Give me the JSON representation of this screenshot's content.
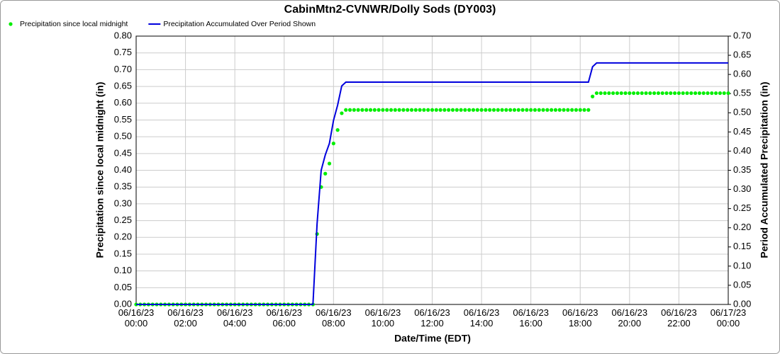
{
  "chart_data": {
    "type": "line",
    "title": "CabinMtn2-CVNWR/Dolly Sods (DY003)",
    "xlabel": "Date/Time (EDT)",
    "ylabel": "Precipitation since local midnight (in)",
    "y2label": "Period Accumulated Precipitation (in)",
    "legend": "top-left",
    "grid": true,
    "xlim": [
      "06/16/23 00:00",
      "06/17/23 00:00"
    ],
    "xticks": [
      {
        "value": "06/16/23 00:00",
        "label": "06/16/23\n00:00"
      },
      {
        "value": "06/16/23 02:00",
        "label": "06/16/23\n02:00"
      },
      {
        "value": "06/16/23 04:00",
        "label": "06/16/23\n04:00"
      },
      {
        "value": "06/16/23 06:00",
        "label": "06/16/23\n06:00"
      },
      {
        "value": "06/16/23 08:00",
        "label": "06/16/23\n08:00"
      },
      {
        "value": "06/16/23 10:00",
        "label": "06/16/23\n10:00"
      },
      {
        "value": "06/16/23 12:00",
        "label": "06/16/23\n12:00"
      },
      {
        "value": "06/16/23 14:00",
        "label": "06/16/23\n14:00"
      },
      {
        "value": "06/16/23 16:00",
        "label": "06/16/23\n16:00"
      },
      {
        "value": "06/16/23 18:00",
        "label": "06/16/23\n18:00"
      },
      {
        "value": "06/16/23 20:00",
        "label": "06/16/23\n20:00"
      },
      {
        "value": "06/16/23 22:00",
        "label": "06/16/23\n22:00"
      },
      {
        "value": "06/17/23 00:00",
        "label": "06/17/23\n00:00"
      }
    ],
    "ylim": [
      0,
      0.8
    ],
    "yticks": [
      {
        "value": 0,
        "label": "0.00"
      },
      {
        "value": 0.05,
        "label": "0.05"
      },
      {
        "value": 0.1,
        "label": "0.10"
      },
      {
        "value": 0.15,
        "label": "0.15"
      },
      {
        "value": 0.2,
        "label": "0.20"
      },
      {
        "value": 0.25,
        "label": "0.25"
      },
      {
        "value": 0.3,
        "label": "0.30"
      },
      {
        "value": 0.35,
        "label": "0.35"
      },
      {
        "value": 0.4,
        "label": "0.40"
      },
      {
        "value": 0.45,
        "label": "0.45"
      },
      {
        "value": 0.5,
        "label": "0.50"
      },
      {
        "value": 0.55,
        "label": "0.55"
      },
      {
        "value": 0.6,
        "label": "0.60"
      },
      {
        "value": 0.65,
        "label": "0.65"
      },
      {
        "value": 0.7,
        "label": "0.70"
      },
      {
        "value": 0.75,
        "label": "0.75"
      },
      {
        "value": 0.8,
        "label": "0.80"
      }
    ],
    "y2lim": [
      0,
      0.7
    ],
    "y2ticks": [
      {
        "value": 0,
        "label": "0.00"
      },
      {
        "value": 0.05,
        "label": "0.05"
      },
      {
        "value": 0.1,
        "label": "0.10"
      },
      {
        "value": 0.15,
        "label": "0.15"
      },
      {
        "value": 0.2,
        "label": "0.20"
      },
      {
        "value": 0.25,
        "label": "0.25"
      },
      {
        "value": 0.3,
        "label": "0.30"
      },
      {
        "value": 0.35,
        "label": "0.35"
      },
      {
        "value": 0.4,
        "label": "0.40"
      },
      {
        "value": 0.45,
        "label": "0.45"
      },
      {
        "value": 0.5,
        "label": "0.50"
      },
      {
        "value": 0.55,
        "label": "0.55"
      },
      {
        "value": 0.6,
        "label": "0.60"
      },
      {
        "value": 0.65,
        "label": "0.65"
      },
      {
        "value": 0.7,
        "label": "0.70"
      }
    ],
    "x": [
      "06/16/23 00:00",
      "06/16/23 00:10",
      "06/16/23 00:20",
      "06/16/23 00:30",
      "06/16/23 00:40",
      "06/16/23 00:50",
      "06/16/23 01:00",
      "06/16/23 01:10",
      "06/16/23 01:20",
      "06/16/23 01:30",
      "06/16/23 01:40",
      "06/16/23 01:50",
      "06/16/23 02:00",
      "06/16/23 02:10",
      "06/16/23 02:20",
      "06/16/23 02:30",
      "06/16/23 02:40",
      "06/16/23 02:50",
      "06/16/23 03:00",
      "06/16/23 03:10",
      "06/16/23 03:20",
      "06/16/23 03:30",
      "06/16/23 03:40",
      "06/16/23 03:50",
      "06/16/23 04:00",
      "06/16/23 04:10",
      "06/16/23 04:20",
      "06/16/23 04:30",
      "06/16/23 04:40",
      "06/16/23 04:50",
      "06/16/23 05:00",
      "06/16/23 05:10",
      "06/16/23 05:20",
      "06/16/23 05:30",
      "06/16/23 05:40",
      "06/16/23 05:50",
      "06/16/23 06:00",
      "06/16/23 06:10",
      "06/16/23 06:20",
      "06/16/23 06:30",
      "06/16/23 06:40",
      "06/16/23 06:50",
      "06/16/23 07:00",
      "06/16/23 07:10",
      "06/16/23 07:20",
      "06/16/23 07:30",
      "06/16/23 07:40",
      "06/16/23 07:50",
      "06/16/23 08:00",
      "06/16/23 08:10",
      "06/16/23 08:20",
      "06/16/23 08:30",
      "06/16/23 08:40",
      "06/16/23 08:50",
      "06/16/23 09:00",
      "06/16/23 09:10",
      "06/16/23 09:20",
      "06/16/23 09:30",
      "06/16/23 09:40",
      "06/16/23 09:50",
      "06/16/23 10:00",
      "06/16/23 10:10",
      "06/16/23 10:20",
      "06/16/23 10:30",
      "06/16/23 10:40",
      "06/16/23 10:50",
      "06/16/23 11:00",
      "06/16/23 11:10",
      "06/16/23 11:20",
      "06/16/23 11:30",
      "06/16/23 11:40",
      "06/16/23 11:50",
      "06/16/23 12:00",
      "06/16/23 12:10",
      "06/16/23 12:20",
      "06/16/23 12:30",
      "06/16/23 12:40",
      "06/16/23 12:50",
      "06/16/23 13:00",
      "06/16/23 13:10",
      "06/16/23 13:20",
      "06/16/23 13:30",
      "06/16/23 13:40",
      "06/16/23 13:50",
      "06/16/23 14:00",
      "06/16/23 14:10",
      "06/16/23 14:20",
      "06/16/23 14:30",
      "06/16/23 14:40",
      "06/16/23 14:50",
      "06/16/23 15:00",
      "06/16/23 15:10",
      "06/16/23 15:20",
      "06/16/23 15:30",
      "06/16/23 15:40",
      "06/16/23 15:50",
      "06/16/23 16:00",
      "06/16/23 16:10",
      "06/16/23 16:20",
      "06/16/23 16:30",
      "06/16/23 16:40",
      "06/16/23 16:50",
      "06/16/23 17:00",
      "06/16/23 17:10",
      "06/16/23 17:20",
      "06/16/23 17:30",
      "06/16/23 17:40",
      "06/16/23 17:50",
      "06/16/23 18:00",
      "06/16/23 18:10",
      "06/16/23 18:20",
      "06/16/23 18:30",
      "06/16/23 18:40",
      "06/16/23 18:50",
      "06/16/23 19:00",
      "06/16/23 19:10",
      "06/16/23 19:20",
      "06/16/23 19:30",
      "06/16/23 19:40",
      "06/16/23 19:50",
      "06/16/23 20:00",
      "06/16/23 20:10",
      "06/16/23 20:20",
      "06/16/23 20:30",
      "06/16/23 20:40",
      "06/16/23 20:50",
      "06/16/23 21:00",
      "06/16/23 21:10",
      "06/16/23 21:20",
      "06/16/23 21:30",
      "06/16/23 21:40",
      "06/16/23 21:50",
      "06/16/23 22:00",
      "06/16/23 22:10",
      "06/16/23 22:20",
      "06/16/23 22:30",
      "06/16/23 22:40",
      "06/16/23 22:50",
      "06/16/23 23:00",
      "06/16/23 23:10",
      "06/16/23 23:20",
      "06/16/23 23:30",
      "06/16/23 23:40",
      "06/16/23 23:50",
      "06/17/23 00:00"
    ],
    "series": [
      {
        "name": "Precipitation since local midnight",
        "color": "#00ee00",
        "mode": "markers",
        "axis": "y",
        "values": [
          0,
          0,
          0,
          0,
          0,
          0,
          0,
          0,
          0,
          0,
          0,
          0,
          0,
          0,
          0,
          0,
          0,
          0,
          0,
          0,
          0,
          0,
          0,
          0,
          0,
          0,
          0,
          0,
          0,
          0,
          0,
          0,
          0,
          0,
          0,
          0,
          0,
          0,
          0,
          0,
          0,
          0,
          0,
          0,
          0.21,
          0.35,
          0.39,
          0.42,
          0.48,
          0.52,
          0.57,
          0.58,
          0.58,
          0.58,
          0.58,
          0.58,
          0.58,
          0.58,
          0.58,
          0.58,
          0.58,
          0.58,
          0.58,
          0.58,
          0.58,
          0.58,
          0.58,
          0.58,
          0.58,
          0.58,
          0.58,
          0.58,
          0.58,
          0.58,
          0.58,
          0.58,
          0.58,
          0.58,
          0.58,
          0.58,
          0.58,
          0.58,
          0.58,
          0.58,
          0.58,
          0.58,
          0.58,
          0.58,
          0.58,
          0.58,
          0.58,
          0.58,
          0.58,
          0.58,
          0.58,
          0.58,
          0.58,
          0.58,
          0.58,
          0.58,
          0.58,
          0.58,
          0.58,
          0.58,
          0.58,
          0.58,
          0.58,
          0.58,
          0.58,
          0.58,
          0.58,
          0.62,
          0.63,
          0.63,
          0.63,
          0.63,
          0.63,
          0.63,
          0.63,
          0.63,
          0.63,
          0.63,
          0.63,
          0.63,
          0.63,
          0.63,
          0.63,
          0.63,
          0.63,
          0.63,
          0.63,
          0.63,
          0.63,
          0.63,
          0.63,
          0.63,
          0.63,
          0.63,
          0.63,
          0.63,
          0.63,
          0.63,
          0.63,
          0.63,
          0.63
        ]
      },
      {
        "name": "Precipitation Accumulated Over Period Shown",
        "color": "#0000dd",
        "mode": "lines",
        "axis": "y2",
        "values": [
          0,
          0,
          0,
          0,
          0,
          0,
          0,
          0,
          0,
          0,
          0,
          0,
          0,
          0,
          0,
          0,
          0,
          0,
          0,
          0,
          0,
          0,
          0,
          0,
          0,
          0,
          0,
          0,
          0,
          0,
          0,
          0,
          0,
          0,
          0,
          0,
          0,
          0,
          0,
          0,
          0,
          0,
          0,
          0,
          0.21,
          0.35,
          0.39,
          0.42,
          0.48,
          0.52,
          0.57,
          0.58,
          0.58,
          0.58,
          0.58,
          0.58,
          0.58,
          0.58,
          0.58,
          0.58,
          0.58,
          0.58,
          0.58,
          0.58,
          0.58,
          0.58,
          0.58,
          0.58,
          0.58,
          0.58,
          0.58,
          0.58,
          0.58,
          0.58,
          0.58,
          0.58,
          0.58,
          0.58,
          0.58,
          0.58,
          0.58,
          0.58,
          0.58,
          0.58,
          0.58,
          0.58,
          0.58,
          0.58,
          0.58,
          0.58,
          0.58,
          0.58,
          0.58,
          0.58,
          0.58,
          0.58,
          0.58,
          0.58,
          0.58,
          0.58,
          0.58,
          0.58,
          0.58,
          0.58,
          0.58,
          0.58,
          0.58,
          0.58,
          0.58,
          0.58,
          0.58,
          0.62,
          0.63,
          0.63,
          0.63,
          0.63,
          0.63,
          0.63,
          0.63,
          0.63,
          0.63,
          0.63,
          0.63,
          0.63,
          0.63,
          0.63,
          0.63,
          0.63,
          0.63,
          0.63,
          0.63,
          0.63,
          0.63,
          0.63,
          0.63,
          0.63,
          0.63,
          0.63,
          0.63,
          0.63,
          0.63,
          0.63,
          0.63,
          0.63,
          0.63
        ]
      }
    ]
  }
}
